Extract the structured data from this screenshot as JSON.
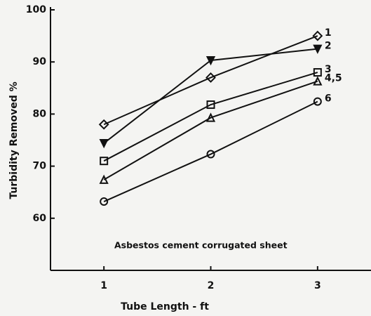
{
  "chart_data": {
    "type": "line",
    "x_label": "Tube Length - ft",
    "y_label": "Turbidity Removed %",
    "annotation": "Asbestos cement corrugated sheet",
    "x": [
      1,
      2,
      3
    ],
    "xlim": [
      0.5,
      3.5
    ],
    "xticks": [
      1,
      2,
      3
    ],
    "ylim": [
      50,
      100
    ],
    "yticks": [
      60,
      70,
      80,
      90,
      100
    ],
    "grid": false,
    "series": [
      {
        "name": "1",
        "color": "#111111",
        "marker": "diamond",
        "values": [
          78,
          87,
          95
        ]
      },
      {
        "name": "2",
        "color": "#111111",
        "marker": "triangle-down",
        "values": [
          74.4,
          90.3,
          92.5
        ]
      },
      {
        "name": "3",
        "color": "#111111",
        "marker": "square",
        "values": [
          71,
          81.8,
          88
        ]
      },
      {
        "name": "4,5",
        "color": "#111111",
        "marker": "triangle-up",
        "values": [
          67.4,
          79.3,
          86.3
        ]
      },
      {
        "name": "6",
        "color": "#111111",
        "marker": "circle",
        "values": [
          63.2,
          72.3,
          82.4
        ]
      }
    ]
  }
}
